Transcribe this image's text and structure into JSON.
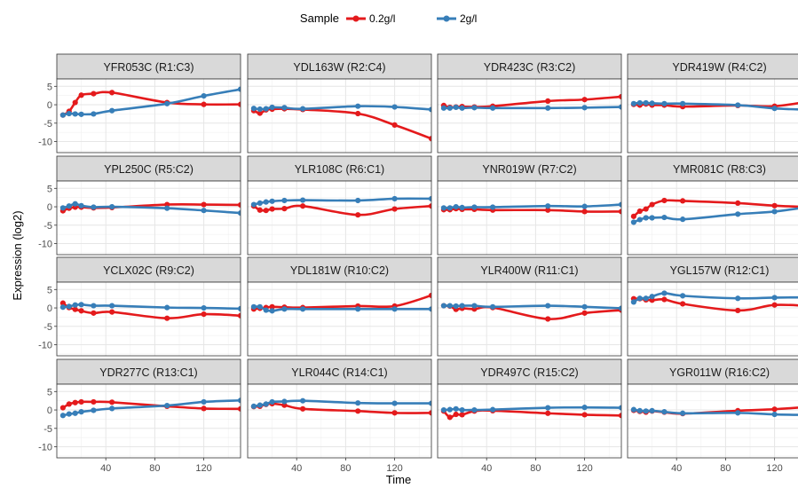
{
  "chart_data": {
    "type": "line",
    "xlabel": "Time",
    "ylabel": "Expression (log2)",
    "legend": {
      "title": "Sample",
      "position": "top",
      "entries": [
        {
          "name": "0.2g/l",
          "color": "#e41a1c"
        },
        {
          "name": "2g/l",
          "color": "#377eb8"
        }
      ]
    },
    "x_ticks": [
      40,
      80,
      120
    ],
    "y_ticks": [
      5,
      0,
      -5,
      -10
    ],
    "xlim": [
      0,
      150
    ],
    "ylim": [
      -13,
      7
    ],
    "grid": true,
    "time_points": [
      5,
      10,
      15,
      20,
      30,
      45,
      90,
      120,
      150
    ],
    "panels": [
      {
        "title": "YFR053C (R1:C3)",
        "s1": [
          -2.8,
          -1.8,
          0.6,
          2.6,
          3.0,
          3.3,
          0.6,
          0.1,
          0.1
        ],
        "s2": [
          -2.8,
          -2.4,
          -2.5,
          -2.6,
          -2.5,
          -1.6,
          0.3,
          2.4,
          4.2
        ]
      },
      {
        "title": "YDL163W (R2:C4)",
        "s1": [
          -1.6,
          -2.3,
          -1.4,
          -1.2,
          -1.1,
          -1.3,
          -2.4,
          -5.5,
          -9.2
        ],
        "s2": [
          -1.0,
          -1.2,
          -1.1,
          -0.7,
          -0.8,
          -1.1,
          -0.4,
          -0.6,
          -1.3
        ]
      },
      {
        "title": "YDR423C (R3:C2)",
        "s1": [
          -0.2,
          -0.7,
          -0.6,
          -0.5,
          -0.6,
          -0.4,
          1.0,
          1.4,
          2.2
        ],
        "s2": [
          -0.9,
          -0.9,
          -0.7,
          -0.9,
          -0.8,
          -0.9,
          -0.9,
          -0.8,
          -0.6
        ]
      },
      {
        "title": "YDR419W (R4:C2)",
        "s1": [
          0.1,
          -0.1,
          0.2,
          -0.1,
          -0.1,
          -0.5,
          -0.2,
          -0.4,
          1.0
        ],
        "s2": [
          0.3,
          0.5,
          0.5,
          0.4,
          0.3,
          0.3,
          -0.1,
          -1.0,
          -1.4
        ]
      },
      {
        "title": "YPL250C (R5:C2)",
        "s1": [
          -1.1,
          -0.4,
          -0.1,
          -0.1,
          -0.3,
          -0.2,
          0.6,
          0.6,
          0.5
        ],
        "s2": [
          -0.3,
          0.2,
          0.8,
          0.3,
          -0.1,
          0.0,
          -0.4,
          -1.0,
          -1.7
        ]
      },
      {
        "title": "YLR108C (R6:C1)",
        "s1": [
          0.2,
          -0.9,
          -1.0,
          -0.6,
          -0.5,
          0.2,
          -2.2,
          -0.6,
          0.2
        ],
        "s2": [
          0.6,
          1.0,
          1.3,
          1.5,
          1.7,
          1.8,
          1.7,
          2.2,
          2.2
        ]
      },
      {
        "title": "YNR019W (R7:C2)",
        "s1": [
          -0.8,
          -0.8,
          -0.5,
          -0.7,
          -0.7,
          -0.9,
          -0.9,
          -1.3,
          -1.3
        ],
        "s2": [
          -0.3,
          -0.3,
          0.0,
          -0.2,
          -0.1,
          -0.1,
          0.2,
          0.1,
          0.6
        ]
      },
      {
        "title": "YMR081C (R8:C3)",
        "s1": [
          -2.6,
          -1.2,
          -0.6,
          0.6,
          1.7,
          1.6,
          1.0,
          0.3,
          -0.1
        ],
        "s2": [
          -4.2,
          -3.5,
          -3.0,
          -3.0,
          -2.9,
          -3.4,
          -2.0,
          -1.3,
          0.1
        ]
      },
      {
        "title": "YCLX02C (R9:C2)",
        "s1": [
          1.3,
          0.1,
          -0.4,
          -0.8,
          -1.4,
          -1.1,
          -2.8,
          -1.7,
          -2.1
        ],
        "s2": [
          0.2,
          0.4,
          0.8,
          0.9,
          0.6,
          0.6,
          0.1,
          0.0,
          -0.2
        ]
      },
      {
        "title": "YDL181W (R10:C2)",
        "s1": [
          -0.3,
          -0.1,
          0.1,
          0.3,
          0.2,
          0.1,
          0.5,
          0.5,
          3.4
        ],
        "s2": [
          0.3,
          0.3,
          -0.6,
          -0.8,
          -0.3,
          -0.3,
          -0.3,
          -0.3,
          -0.3
        ]
      },
      {
        "title": "YLR400W (R11:C1)",
        "s1": [
          0.6,
          0.5,
          -0.4,
          -0.1,
          -0.3,
          0.1,
          -3.0,
          -1.4,
          -0.6
        ],
        "s2": [
          0.6,
          0.6,
          0.5,
          0.6,
          0.6,
          0.3,
          0.6,
          0.3,
          -0.1
        ]
      },
      {
        "title": "YGL157W (R12:C1)",
        "s1": [
          2.5,
          2.5,
          2.2,
          2.1,
          2.3,
          1.1,
          -0.7,
          0.8,
          0.5
        ],
        "s2": [
          1.6,
          2.6,
          2.6,
          3.1,
          4.0,
          3.3,
          2.6,
          2.8,
          2.9
        ]
      },
      {
        "title": "YDR277C (R13:C1)",
        "s1": [
          0.6,
          1.6,
          2.0,
          2.2,
          2.2,
          2.1,
          1.0,
          0.4,
          0.3
        ],
        "s2": [
          -1.5,
          -1.1,
          -0.9,
          -0.5,
          -0.1,
          0.4,
          1.2,
          2.2,
          2.6
        ]
      },
      {
        "title": "YLR044C (R14:C1)",
        "s1": [
          0.9,
          1.0,
          1.5,
          1.7,
          1.3,
          0.3,
          -0.3,
          -0.8,
          -0.8
        ],
        "s2": [
          1.0,
          1.3,
          1.6,
          2.2,
          2.3,
          2.5,
          1.9,
          1.8,
          1.8
        ]
      },
      {
        "title": "YDR497C (R15:C2)",
        "s1": [
          -0.3,
          -2.0,
          -1.2,
          -1.3,
          -0.3,
          -0.2,
          -0.9,
          -1.3,
          -1.5
        ],
        "s2": [
          0.0,
          0.1,
          0.3,
          0.0,
          0.0,
          0.1,
          0.6,
          0.7,
          0.6
        ]
      },
      {
        "title": "YGR011W (R16:C2)",
        "s1": [
          -0.1,
          -0.4,
          -0.6,
          -0.3,
          -0.6,
          -1.0,
          -0.2,
          0.2,
          0.9
        ],
        "s2": [
          0.1,
          -0.2,
          -0.3,
          -0.2,
          -0.5,
          -0.9,
          -0.8,
          -1.2,
          -1.4
        ]
      }
    ]
  }
}
